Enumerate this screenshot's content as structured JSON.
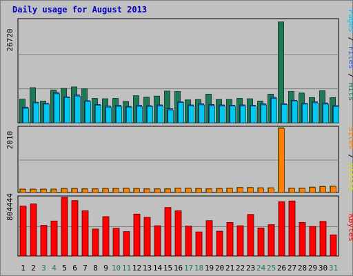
{
  "chart_data": [
    {
      "type": "bar",
      "title": "Daily usage for August 2013",
      "categories": [
        "1",
        "2",
        "3",
        "4",
        "5",
        "6",
        "7",
        "8",
        "9",
        "10",
        "11",
        "12",
        "13",
        "14",
        "15",
        "16",
        "17",
        "18",
        "19",
        "20",
        "21",
        "22",
        "23",
        "24",
        "25",
        "26",
        "27",
        "28",
        "29",
        "30",
        "31"
      ],
      "weekend_days": [
        "3",
        "4",
        "10",
        "11",
        "17",
        "18",
        "24",
        "25",
        "31"
      ],
      "ylabel_parts": [
        "Pages",
        "Files",
        "Hits"
      ],
      "ymax_label": "26720",
      "ylim": [
        0,
        26720
      ],
      "grid": true,
      "series": [
        {
          "name": "Hits",
          "color": "#1e7a55",
          "values": [
            6200,
            9200,
            5700,
            8600,
            9000,
            9400,
            8900,
            6400,
            6300,
            6400,
            5600,
            7100,
            6700,
            7000,
            8300,
            8200,
            6000,
            6100,
            7500,
            6100,
            6100,
            6400,
            6300,
            5700,
            7500,
            26400,
            8200,
            7800,
            6600,
            8400,
            6600
          ]
        },
        {
          "name": "Files",
          "color": "#2e5fd8",
          "values": [
            4100,
            5400,
            5100,
            7900,
            6800,
            7300,
            5800,
            4800,
            4400,
            4600,
            4300,
            4600,
            4500,
            4700,
            3700,
            5500,
            4700,
            5000,
            4800,
            4700,
            4600,
            4700,
            4600,
            5000,
            6700,
            5000,
            5900,
            5100,
            5500,
            5200,
            4500
          ]
        },
        {
          "name": "Pages",
          "color": "#00c8f0",
          "values": [
            3800,
            5200,
            4900,
            7600,
            6600,
            7000,
            5600,
            4600,
            4100,
            4300,
            4100,
            4300,
            4300,
            4400,
            3300,
            5300,
            4400,
            4700,
            4400,
            4400,
            4400,
            4400,
            4400,
            4700,
            6400,
            4800,
            5700,
            4900,
            5200,
            4900,
            4300
          ]
        }
      ]
    },
    {
      "type": "bar",
      "categories": [
        "1",
        "2",
        "3",
        "4",
        "5",
        "6",
        "7",
        "8",
        "9",
        "10",
        "11",
        "12",
        "13",
        "14",
        "15",
        "16",
        "17",
        "18",
        "19",
        "20",
        "21",
        "22",
        "23",
        "24",
        "25",
        "26",
        "27",
        "28",
        "29",
        "30",
        "31"
      ],
      "ylabel_parts": [
        "Sites",
        "Visits"
      ],
      "ymax_label": "2010",
      "ylim": [
        0,
        2010
      ],
      "grid": true,
      "series": [
        {
          "name": "Visits",
          "color": "#e8e000",
          "values": [
            110,
            110,
            110,
            110,
            130,
            130,
            120,
            120,
            130,
            130,
            140,
            130,
            120,
            120,
            120,
            140,
            140,
            130,
            120,
            130,
            140,
            160,
            160,
            150,
            150,
            2010,
            140,
            140,
            170,
            190,
            200
          ]
        },
        {
          "name": "Sites",
          "color": "#ff8000",
          "values": [
            100,
            100,
            100,
            90,
            120,
            120,
            110,
            110,
            120,
            120,
            130,
            120,
            110,
            110,
            110,
            130,
            130,
            120,
            110,
            120,
            130,
            150,
            150,
            140,
            140,
            1990,
            130,
            130,
            160,
            180,
            190
          ]
        }
      ]
    },
    {
      "type": "bar",
      "categories": [
        "1",
        "2",
        "3",
        "4",
        "5",
        "6",
        "7",
        "8",
        "9",
        "10",
        "11",
        "12",
        "13",
        "14",
        "15",
        "16",
        "17",
        "18",
        "19",
        "20",
        "21",
        "22",
        "23",
        "24",
        "25",
        "26",
        "27",
        "28",
        "29",
        "30",
        "31"
      ],
      "ylabel_parts": [
        "KBytes"
      ],
      "ymax_label": "804444",
      "ylim": [
        0,
        804444
      ],
      "grid": true,
      "series": [
        {
          "name": "KBytes",
          "color": "#ff0000",
          "values": [
            685000,
            715000,
            420000,
            480000,
            805000,
            760000,
            620000,
            370000,
            540000,
            380000,
            335000,
            575000,
            530000,
            415000,
            665000,
            620000,
            410000,
            330000,
            485000,
            340000,
            460000,
            415000,
            570000,
            385000,
            430000,
            745000,
            755000,
            460000,
            405000,
            475000,
            290000
          ]
        }
      ]
    }
  ]
}
